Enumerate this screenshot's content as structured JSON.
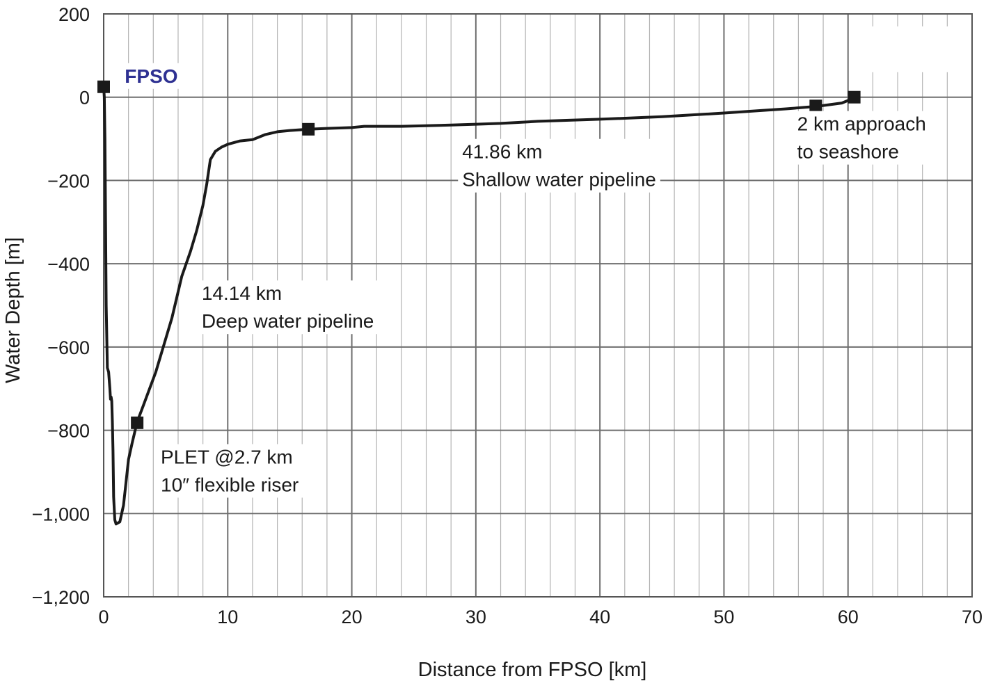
{
  "chart_data": {
    "type": "line",
    "title": "",
    "xlabel": "Distance from FPSO [km]",
    "ylabel": "Water Depth [m]",
    "xlim": [
      0,
      70
    ],
    "ylim": [
      -1200,
      200
    ],
    "x_ticks": [
      0,
      10,
      20,
      30,
      40,
      50,
      60,
      70
    ],
    "x_tick_labels": [
      "0",
      "10",
      "20",
      "30",
      "40",
      "50",
      "60",
      "70"
    ],
    "y_ticks": [
      200,
      0,
      -200,
      -400,
      -600,
      -800,
      -1000,
      -1200
    ],
    "y_tick_labels": [
      "200",
      "0",
      "−200",
      "−400",
      "−600",
      "−800",
      "−1,000",
      "−1,200"
    ],
    "grid": true,
    "minor_x_grid_step": 2,
    "series": [
      {
        "color": "#1a1a1a",
        "x": [
          0.0,
          0.05,
          0.1,
          0.15,
          0.2,
          0.3,
          0.4,
          0.5,
          0.55,
          0.6,
          0.65,
          0.7,
          0.75,
          0.8,
          0.9,
          1.0,
          1.3,
          1.6,
          2.0,
          2.3,
          2.7,
          3.2,
          3.7,
          4.2,
          4.8,
          5.5,
          6.3,
          7.0,
          7.5,
          8.0,
          8.3,
          8.6,
          9.0,
          9.5,
          10.0,
          11.0,
          12.0,
          13.0,
          14.0,
          15.0,
          16.5,
          18.0,
          20.0,
          21.0,
          24.0,
          28.0,
          30.0,
          32.0,
          35.0,
          40.0,
          45.0,
          50.0,
          53.0,
          55.0,
          57.5,
          58.5,
          59.5,
          60.0,
          60.3,
          60.5
        ],
        "y": [
          25,
          0,
          -100,
          -300,
          -500,
          -650,
          -660,
          -700,
          -725,
          -720,
          -730,
          -780,
          -850,
          -960,
          -1015,
          -1025,
          -1020,
          -980,
          -870,
          -830,
          -780,
          -740,
          -700,
          -660,
          -600,
          -530,
          -430,
          -370,
          -320,
          -260,
          -210,
          -150,
          -130,
          -120,
          -113,
          -105,
          -102,
          -90,
          -83,
          -80,
          -77,
          -75,
          -73,
          -70,
          -70,
          -67,
          -65,
          -63,
          -58,
          -53,
          -47,
          -38,
          -32,
          -28,
          -22,
          -18,
          -14,
          -8,
          -3,
          0
        ]
      }
    ],
    "markers": [
      {
        "x": 0.0,
        "y": 25
      },
      {
        "x": 2.7,
        "y": -782
      },
      {
        "x": 16.5,
        "y": -77
      },
      {
        "x": 57.4,
        "y": -21
      },
      {
        "x": 60.5,
        "y": 0
      }
    ],
    "annotations": [
      {
        "lines": [
          "FPSO"
        ],
        "x": 1.7,
        "y": 35,
        "style": "bold",
        "color": "#2e3192"
      },
      {
        "lines": [
          "PLET @2.7 km",
          "10″ flexible riser"
        ],
        "x": 4.6,
        "y": -880,
        "style": "normal",
        "color": "#1a1a1a"
      },
      {
        "lines": [
          "14.14 km",
          "Deep water pipeline"
        ],
        "x": 7.9,
        "y": -487,
        "style": "normal",
        "color": "#1a1a1a"
      },
      {
        "lines": [
          "41.86 km",
          "Shallow water pipeline"
        ],
        "x": 28.9,
        "y": -147,
        "style": "normal",
        "color": "#1a1a1a"
      },
      {
        "lines": [
          "2 km approach",
          "to seashore"
        ],
        "x": 55.9,
        "y": -80,
        "style": "normal",
        "color": "#1a1a1a"
      }
    ]
  }
}
